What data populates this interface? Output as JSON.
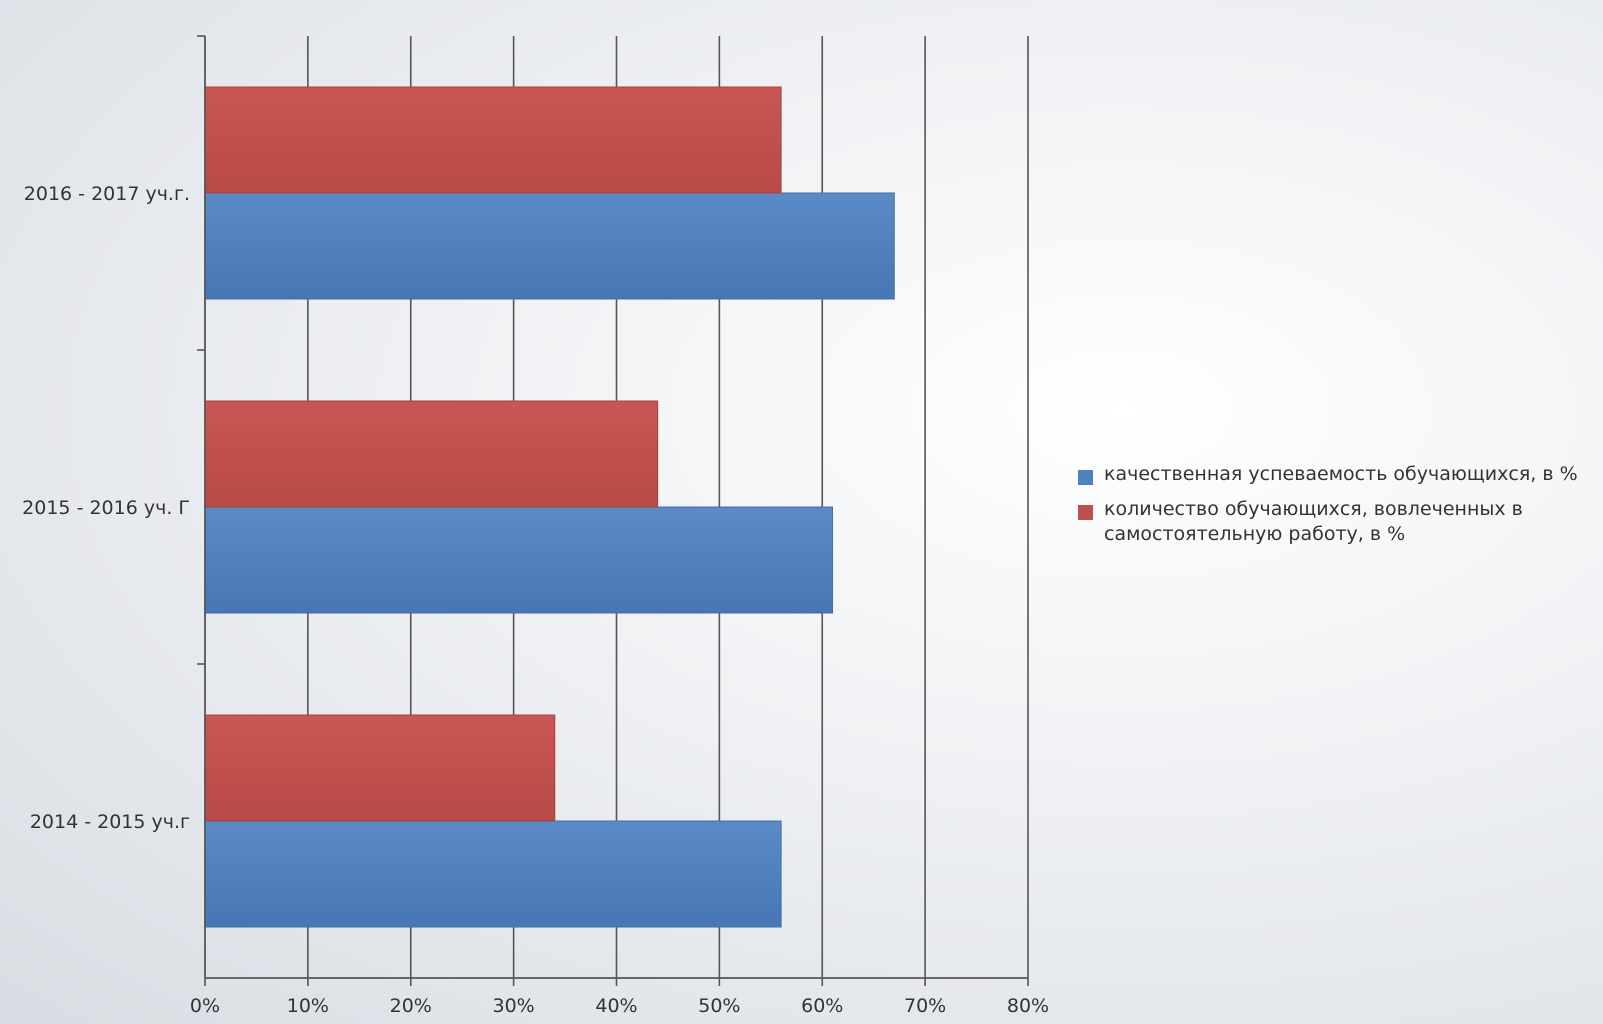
{
  "chart_data": {
    "type": "bar",
    "orientation": "horizontal",
    "categories": [
      "2014  - 2015 уч.г",
      "2015 - 2016 уч. Г",
      "2016 - 2017 уч.г."
    ],
    "series": [
      {
        "name": " качественная успеваемость обучающихся, в %",
        "color": "#4f81bd",
        "values": [
          56,
          61,
          67
        ]
      },
      {
        "name": "количество обучающихся, вовлеченных в самостоятельную работу, в %",
        "color": "#c0504d",
        "values": [
          34,
          44,
          56
        ]
      }
    ],
    "xlim": [
      0,
      80
    ],
    "xticks": [
      "0%",
      "10%",
      "20%",
      "30%",
      "40%",
      "50%",
      "60%",
      "70%",
      "80%"
    ],
    "grid": true,
    "legend_position": "right"
  }
}
